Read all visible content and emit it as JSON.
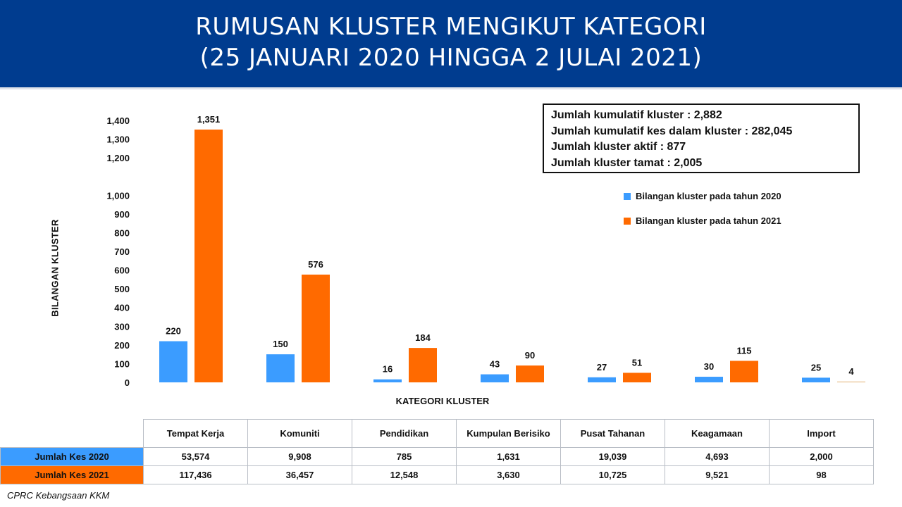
{
  "header": {
    "title_line1": "RUMUSAN KLUSTER MENGIKUT KATEGORI",
    "title_line2": "(25 JANUARI 2020 HINGGA 2 JULAI 2021)"
  },
  "summary": {
    "line1": "Jumlah kumulatif kluster : 2,882",
    "line2": "Jumlah kumulatif kes dalam kluster : 282,045",
    "line3": "Jumlah kluster aktif : 877",
    "line4": "Jumlah kluster tamat : 2,005"
  },
  "chart_data": {
    "type": "bar",
    "title": "RUMUSAN KLUSTER MENGIKUT KATEGORI",
    "subtitle": "(25 JANUARI 2020 HINGGA 2 JULAI 2021)",
    "xlabel": "KATEGORI KLUSTER",
    "ylabel": "BILANGAN KLUSTER",
    "categories": [
      "Tempat Kerja",
      "Komuniti",
      "Pendidikan",
      "Kumpulan Berisiko",
      "Pusat Tahanan",
      "Keagamaan",
      "Import"
    ],
    "series": [
      {
        "name": "Bilangan kluster pada tahun 2020",
        "values": [
          220,
          150,
          16,
          43,
          27,
          30,
          25
        ],
        "color": "#3b9cff"
      },
      {
        "name": "Bilangan kluster pada tahun 2021",
        "values": [
          1351,
          576,
          184,
          90,
          51,
          115,
          4
        ],
        "color": "#ff6a00"
      }
    ],
    "y_ticks": [
      0,
      100,
      200,
      300,
      400,
      500,
      600,
      700,
      800,
      900,
      1000,
      1200,
      1300,
      1400
    ],
    "y_tick_labels": [
      "0",
      "100",
      "200",
      "300",
      "400",
      "500",
      "600",
      "700",
      "800",
      "900",
      "1,000",
      "1,200",
      "1,300",
      "1,400"
    ],
    "ylim": [
      0,
      1400
    ],
    "grid": false,
    "legend_position": "right"
  },
  "table": {
    "columns": [
      "Tempat Kerja",
      "Komuniti",
      "Pendidikan",
      "Kumpulan Berisiko",
      "Pusat Tahanan",
      "Keagamaan",
      "Import"
    ],
    "rows": [
      {
        "label": "Jumlah Kes 2020",
        "values": [
          "53,574",
          "9,908",
          "785",
          "1,631",
          "19,039",
          "4,693",
          "2,000"
        ]
      },
      {
        "label": "Jumlah Kes 2021",
        "values": [
          "117,436",
          "36,457",
          "12,548",
          "3,630",
          "10,725",
          "9,521",
          "98"
        ]
      }
    ]
  },
  "footer": {
    "source": "CPRC Kebangsaan KKM"
  }
}
